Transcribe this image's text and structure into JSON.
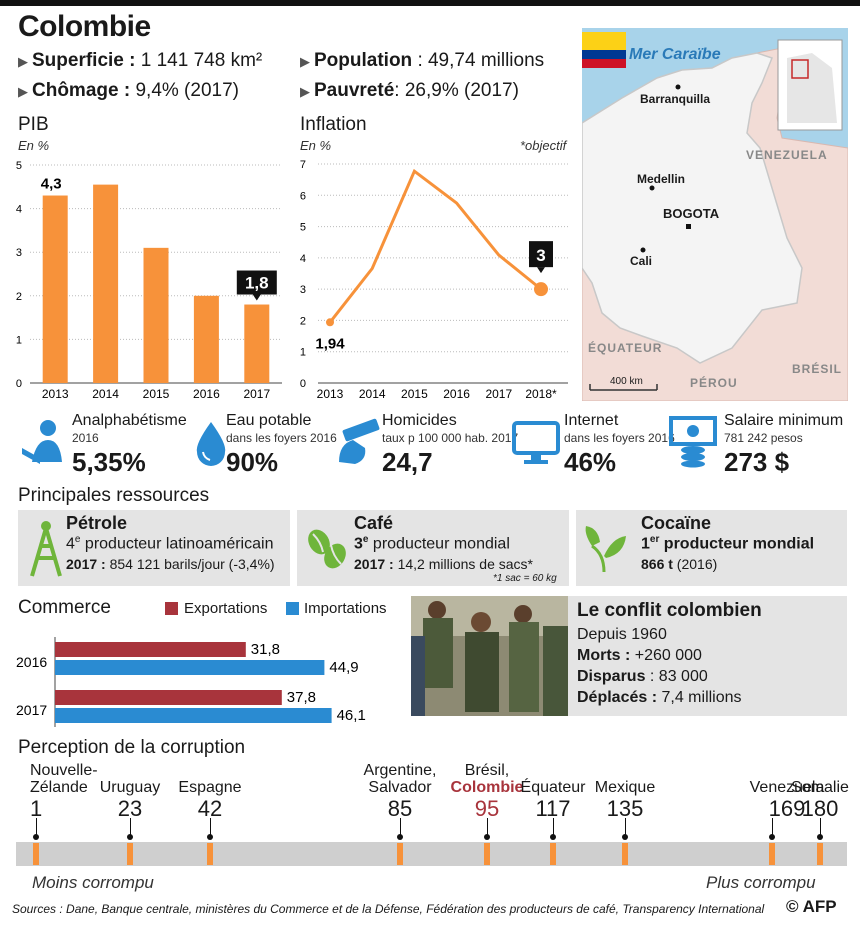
{
  "title": "Colombie",
  "facts": {
    "superficie": {
      "label": "Superficie :",
      "value": "1 141 748 km²"
    },
    "chomage": {
      "label": "Chômage :",
      "value": "9,4% (2017)"
    },
    "population": {
      "label": "Population",
      "value": ": 49,74 millions"
    },
    "pauvrete": {
      "label": "Pauvreté",
      "value": ": 26,9% (2017)"
    }
  },
  "map": {
    "sea": "Mer Caraïbe",
    "cities": [
      "Barranquilla",
      "Medellin",
      "BOGOTA",
      "Cali"
    ],
    "countries": [
      "VENEZUELA",
      "ÉQUATEUR",
      "PÉROU",
      "BRÉSIL"
    ],
    "scale": "400 km"
  },
  "stats": [
    {
      "label": "Analphabétisme",
      "sub": "2016",
      "value": "5,35%",
      "icon": "reading-person-icon"
    },
    {
      "label": "Eau potable",
      "sub": "dans les foyers 2016",
      "value": "90%",
      "icon": "water-drop-icon"
    },
    {
      "label": "Homicides",
      "sub": "taux p 100 000 hab. 2017",
      "value": "24,7",
      "icon": "gun-hand-icon"
    },
    {
      "label": "Internet",
      "sub": "dans les foyers 2016",
      "value": "46%",
      "icon": "monitor-icon"
    },
    {
      "label": "Salaire minimum",
      "sub": "781 242 pesos",
      "value": "273 $",
      "icon": "money-icon"
    }
  ],
  "resources": {
    "title": "Principales ressources",
    "items": [
      {
        "name": "Pétrole",
        "rank_num": "4",
        "rank_sup": "e",
        "rank_text": " producteur latinoaméricain",
        "detail_bold": "2017 :",
        "detail": " 854 121 barils/jour (-3,4%)",
        "note": "",
        "icon": "oil-derrick-icon"
      },
      {
        "name": "Café",
        "rank_num": "3",
        "rank_sup": "e",
        "rank_text": " producteur mondial",
        "detail_bold": "2017 :",
        "detail": " 14,2 millions de sacs*",
        "note": "*1 sac = 60 kg",
        "icon": "coffee-beans-icon"
      },
      {
        "name": "Cocaïne",
        "rank_num": "1",
        "rank_sup": "er",
        "rank_text": " producteur mondial",
        "detail_bold": "866 t",
        "detail": " (2016)",
        "note": "",
        "icon": "leaf-sprout-icon"
      }
    ]
  },
  "conflict": {
    "title": "Le conflit colombien",
    "since": "Depuis 1960",
    "lines": [
      {
        "label": "Morts :",
        "value": " +260 000"
      },
      {
        "label": "Disparus",
        "value": " : 83 000"
      },
      {
        "label": "Déplacés :",
        "value": " 7,4 millions"
      }
    ]
  },
  "corruption": {
    "title": "Perception de la corruption",
    "less": "Moins corrompu",
    "more": "Plus corrompu",
    "countries": [
      {
        "name1": "Nouvelle-",
        "name2": "Zélande",
        "rank": 1
      },
      {
        "name1": "",
        "name2": "Uruguay",
        "rank": 23
      },
      {
        "name1": "",
        "name2": "Espagne",
        "rank": 42
      },
      {
        "name1": "Argentine,",
        "name2": "Salvador",
        "rank": 85
      },
      {
        "name1": "Brésil,",
        "name2": "Colombie",
        "rank": 95
      },
      {
        "name1": "",
        "name2": "Équateur",
        "rank": 117
      },
      {
        "name1": "",
        "name2": "Mexique",
        "rank": 135
      },
      {
        "name1": "",
        "name2": "Venezuela",
        "rank": 169
      },
      {
        "name1": "",
        "name2": "Somalie",
        "rank": 180
      }
    ]
  },
  "footer": "Sources : Dane, Banque centrale, ministères du Commerce et de la Défense, Fédération des producteurs de café, Transparency International",
  "credit": "© AFP",
  "colors": {
    "orange": "#f7923a",
    "red": "#a8343c",
    "blue": "#2a8bd2",
    "grey": "#e4e4e4",
    "map_land": "#efefef",
    "map_sea": "#a8d3ea"
  },
  "chart_data": [
    {
      "type": "bar",
      "title": "PIB",
      "ylabel": "En %",
      "categories": [
        "2013",
        "2014",
        "2015",
        "2016",
        "2017"
      ],
      "values": [
        4.3,
        4.55,
        3.1,
        2.0,
        1.8
      ],
      "value_labels": [
        "4,3",
        "",
        "",
        "",
        "1,8"
      ],
      "ylim": [
        0,
        5
      ],
      "yticks": [
        0,
        1,
        2,
        3,
        4,
        5
      ]
    },
    {
      "type": "line",
      "title": "Inflation",
      "ylabel": "En %",
      "note": "*objectif",
      "categories": [
        "2013",
        "2014",
        "2015",
        "2016",
        "2017",
        "2018*"
      ],
      "values": [
        1.94,
        3.66,
        6.77,
        5.75,
        4.09,
        3.0
      ],
      "value_labels": [
        "1,94",
        "",
        "",
        "",
        "",
        "3"
      ],
      "ylim": [
        0,
        7
      ],
      "yticks": [
        0,
        1,
        2,
        3,
        4,
        5,
        6,
        7
      ]
    },
    {
      "type": "bar",
      "orientation": "horizontal",
      "title": "Commerce",
      "categories": [
        "2016",
        "2017"
      ],
      "series": [
        {
          "name": "Exportations",
          "values": [
            31.8,
            37.8
          ],
          "labels": [
            "31,8",
            "37,8"
          ]
        },
        {
          "name": "Importations",
          "values": [
            44.9,
            46.1
          ],
          "labels": [
            "44,9",
            "46,1"
          ]
        }
      ],
      "xlim": [
        0,
        50
      ]
    }
  ]
}
